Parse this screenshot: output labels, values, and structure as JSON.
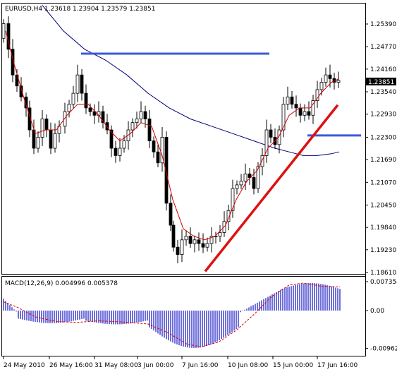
{
  "main_chart": {
    "header": "EURUSD,H4  1.23618 1.23904 1.23579 1.23851",
    "price_min": 1.1831,
    "price_max": 1.2599,
    "price_ticks": [
      "1.25390",
      "1.24770",
      "1.24160",
      "1.23540",
      "1.22930",
      "1.22300",
      "1.21690",
      "1.21070",
      "1.20450",
      "1.19840",
      "1.19230",
      "1.18610"
    ],
    "current_price": "1.23851",
    "candle_up_color": "#000000",
    "candle_down_color": "#000000",
    "ma_fast_color": "#d10000",
    "ma_slow_color": "#00007a",
    "level_line_color": "#3b5bd6",
    "trendline_color": "#dd1111"
  },
  "time_axis": {
    "labels": [
      "24 May 2010",
      "26 May 16:00",
      "31 May 08:00",
      "3 Jun 00:00",
      "7 Jun 16:00",
      "10 Jun 08:00",
      "15 Jun 00:00",
      "17 Jun 16:00"
    ]
  },
  "macd_panel": {
    "title": "MACD(12,26,9) 0.004996 0.005378",
    "ticks": [
      "0.007354",
      "0.00",
      "-0.00962"
    ],
    "histogram_color": "#4040d0",
    "signal_color": "#d10000"
  }
}
